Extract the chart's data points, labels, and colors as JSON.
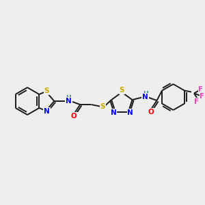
{
  "background_color": "#eeeeee",
  "bond_color": "#1a1a1a",
  "colors": {
    "S": "#ccaa00",
    "N": "#0000ff",
    "O": "#ff0000",
    "H": "#338888",
    "F": "#ee44bb",
    "C": "#1a1a1a"
  },
  "figsize": [
    3.0,
    3.0
  ],
  "dpi": 100
}
